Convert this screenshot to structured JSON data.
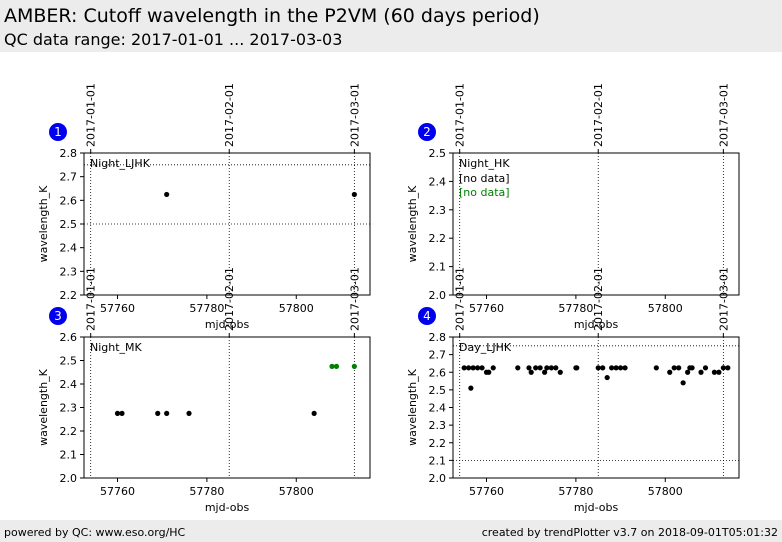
{
  "header": {
    "title": "AMBER: Cutoff wavelength in the P2VM (60 days period)",
    "subtitle": "QC data range: 2017-01-01 ... 2017-03-03"
  },
  "footer": {
    "left": "powered by QC: www.eso.org/HC",
    "right": "created by trendPlotter v3.7 on 2018-09-01T05:01:32"
  },
  "colors": {
    "point": "#000000",
    "highlight": "#008000",
    "badge": "#0000ee"
  },
  "chart_data": [
    {
      "type": "scatter",
      "id": "1",
      "label": "Night_LJHK",
      "xlabel": "mjd-obs",
      "ylabel": "wavelength_K",
      "xlim": [
        57752.5,
        57816.5
      ],
      "ylim": [
        2.2,
        2.8
      ],
      "xticks": [
        57760,
        57780,
        57800
      ],
      "yticks": [
        2.2,
        2.3,
        2.4,
        2.5,
        2.6,
        2.7,
        2.8
      ],
      "date_ticks": [
        {
          "label": "2017-01-01",
          "mjd": 57754
        },
        {
          "label": "2017-02-01",
          "mjd": 57785
        },
        {
          "label": "2017-03-01",
          "mjd": 57813
        }
      ],
      "hlines": [
        2.5,
        2.75
      ],
      "points": [
        {
          "x": 57771,
          "y": 2.625
        },
        {
          "x": 57813,
          "y": 2.625
        }
      ],
      "highlight_points": [],
      "notes": []
    },
    {
      "type": "scatter",
      "id": "2",
      "label": "Night_HK",
      "xlabel": "mjd-obs",
      "ylabel": "wavelength_K",
      "xlim": [
        57752.5,
        57816.5
      ],
      "ylim": [
        2.0,
        2.5
      ],
      "xticks": [
        57760,
        57780,
        57800
      ],
      "yticks": [
        2.0,
        2.1,
        2.2,
        2.3,
        2.4,
        2.5
      ],
      "date_ticks": [
        {
          "label": "2017-01-01",
          "mjd": 57754
        },
        {
          "label": "2017-02-01",
          "mjd": 57785
        },
        {
          "label": "2017-03-01",
          "mjd": 57813
        }
      ],
      "hlines": [],
      "points": [],
      "highlight_points": [],
      "notes": [
        {
          "text": "[no data]",
          "color": "#000000"
        },
        {
          "text": "[no data]",
          "color": "#008000"
        }
      ]
    },
    {
      "type": "scatter",
      "id": "3",
      "label": "Night_MK",
      "xlabel": "mjd-obs",
      "ylabel": "wavelength_K",
      "xlim": [
        57752.5,
        57816.5
      ],
      "ylim": [
        2.0,
        2.6
      ],
      "xticks": [
        57760,
        57780,
        57800
      ],
      "yticks": [
        2.0,
        2.1,
        2.2,
        2.3,
        2.4,
        2.5,
        2.6
      ],
      "date_ticks": [
        {
          "label": "2017-01-01",
          "mjd": 57754
        },
        {
          "label": "2017-02-01",
          "mjd": 57785
        },
        {
          "label": "2017-03-01",
          "mjd": 57813
        }
      ],
      "hlines": [],
      "points": [
        {
          "x": 57760,
          "y": 2.275
        },
        {
          "x": 57761,
          "y": 2.275
        },
        {
          "x": 57769,
          "y": 2.275
        },
        {
          "x": 57771,
          "y": 2.275
        },
        {
          "x": 57776,
          "y": 2.275
        },
        {
          "x": 57804,
          "y": 2.275
        }
      ],
      "highlight_points": [
        {
          "x": 57808,
          "y": 2.475
        },
        {
          "x": 57809,
          "y": 2.475
        },
        {
          "x": 57813,
          "y": 2.475
        }
      ],
      "notes": []
    },
    {
      "type": "scatter",
      "id": "4",
      "label": "Day_LJHK",
      "xlabel": "mjd-obs",
      "ylabel": "wavelength_K",
      "xlim": [
        57752.5,
        57816.5
      ],
      "ylim": [
        2.0,
        2.8
      ],
      "xticks": [
        57760,
        57780,
        57800
      ],
      "yticks": [
        2.0,
        2.1,
        2.2,
        2.3,
        2.4,
        2.5,
        2.6,
        2.7,
        2.8
      ],
      "date_ticks": [
        {
          "label": "2017-01-01",
          "mjd": 57754
        },
        {
          "label": "2017-02-01",
          "mjd": 57785
        },
        {
          "label": "2017-03-01",
          "mjd": 57813
        }
      ],
      "hlines": [
        2.1,
        2.75
      ],
      "points": [
        {
          "x": 57755,
          "y": 2.625
        },
        {
          "x": 57756,
          "y": 2.625
        },
        {
          "x": 57756.5,
          "y": 2.51
        },
        {
          "x": 57757,
          "y": 2.625
        },
        {
          "x": 57758,
          "y": 2.625
        },
        {
          "x": 57759,
          "y": 2.625
        },
        {
          "x": 57760,
          "y": 2.6
        },
        {
          "x": 57760.5,
          "y": 2.6
        },
        {
          "x": 57761.5,
          "y": 2.625
        },
        {
          "x": 57767,
          "y": 2.625
        },
        {
          "x": 57769.5,
          "y": 2.625
        },
        {
          "x": 57770,
          "y": 2.6
        },
        {
          "x": 57771,
          "y": 2.625
        },
        {
          "x": 57772,
          "y": 2.625
        },
        {
          "x": 57773,
          "y": 2.6
        },
        {
          "x": 57773.5,
          "y": 2.625
        },
        {
          "x": 57774.5,
          "y": 2.625
        },
        {
          "x": 57775.5,
          "y": 2.625
        },
        {
          "x": 57776.5,
          "y": 2.6
        },
        {
          "x": 57780,
          "y": 2.625
        },
        {
          "x": 57780.2,
          "y": 2.625
        },
        {
          "x": 57785,
          "y": 2.625
        },
        {
          "x": 57786,
          "y": 2.625
        },
        {
          "x": 57787,
          "y": 2.57
        },
        {
          "x": 57788,
          "y": 2.625
        },
        {
          "x": 57789,
          "y": 2.625
        },
        {
          "x": 57790,
          "y": 2.625
        },
        {
          "x": 57791,
          "y": 2.625
        },
        {
          "x": 57798,
          "y": 2.625
        },
        {
          "x": 57801,
          "y": 2.6
        },
        {
          "x": 57802,
          "y": 2.625
        },
        {
          "x": 57803,
          "y": 2.625
        },
        {
          "x": 57804,
          "y": 2.54
        },
        {
          "x": 57805,
          "y": 2.6
        },
        {
          "x": 57805.5,
          "y": 2.625
        },
        {
          "x": 57806,
          "y": 2.625
        },
        {
          "x": 57808,
          "y": 2.6
        },
        {
          "x": 57809,
          "y": 2.625
        },
        {
          "x": 57811,
          "y": 2.6
        },
        {
          "x": 57812,
          "y": 2.6
        },
        {
          "x": 57813,
          "y": 2.625
        },
        {
          "x": 57814,
          "y": 2.625
        }
      ],
      "highlight_points": [],
      "notes": []
    }
  ]
}
